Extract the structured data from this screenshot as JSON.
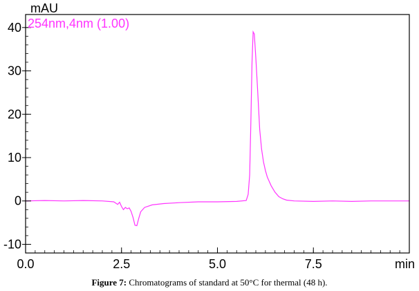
{
  "chart_data": {
    "type": "line",
    "y_unit": "mAU",
    "x_unit": "min",
    "xlim": [
      0,
      10
    ],
    "ylim": [
      -12,
      43
    ],
    "x_ticks": [
      {
        "value": 0,
        "label": "0.0"
      },
      {
        "value": 2.5,
        "label": "2.5"
      },
      {
        "value": 5,
        "label": "5.0"
      },
      {
        "value": 7.5,
        "label": "7.5"
      }
    ],
    "y_ticks": [
      {
        "value": 40,
        "label": "40"
      },
      {
        "value": 30,
        "label": "30"
      },
      {
        "value": 20,
        "label": "20"
      },
      {
        "value": 10,
        "label": "10"
      },
      {
        "value": 0,
        "label": "0"
      },
      {
        "value": -10,
        "label": "-10"
      }
    ],
    "series": [
      {
        "name": "254nm,4nm (1.00)",
        "color": "#ff33ff",
        "points": [
          [
            0.0,
            0.0
          ],
          [
            0.5,
            0.1
          ],
          [
            1.0,
            0.0
          ],
          [
            1.5,
            0.1
          ],
          [
            2.0,
            0.0
          ],
          [
            2.3,
            -0.2
          ],
          [
            2.4,
            -0.8
          ],
          [
            2.45,
            -0.3
          ],
          [
            2.5,
            -1.3
          ],
          [
            2.55,
            -2.0
          ],
          [
            2.6,
            -1.5
          ],
          [
            2.65,
            -1.8
          ],
          [
            2.7,
            -1.6
          ],
          [
            2.75,
            -2.4
          ],
          [
            2.8,
            -3.8
          ],
          [
            2.85,
            -5.6
          ],
          [
            2.9,
            -5.7
          ],
          [
            2.95,
            -4.0
          ],
          [
            3.0,
            -2.5
          ],
          [
            3.1,
            -1.5
          ],
          [
            3.3,
            -0.9
          ],
          [
            3.6,
            -0.6
          ],
          [
            4.0,
            -0.4
          ],
          [
            4.5,
            -0.2
          ],
          [
            5.0,
            -0.2
          ],
          [
            5.5,
            -0.1
          ],
          [
            5.75,
            0.1
          ],
          [
            5.8,
            1.5
          ],
          [
            5.84,
            6.0
          ],
          [
            5.87,
            18.0
          ],
          [
            5.9,
            32.0
          ],
          [
            5.93,
            39.0
          ],
          [
            5.96,
            38.5
          ],
          [
            6.0,
            33.0
          ],
          [
            6.05,
            25.0
          ],
          [
            6.1,
            16.5
          ],
          [
            6.15,
            12.0
          ],
          [
            6.2,
            9.0
          ],
          [
            6.25,
            7.0
          ],
          [
            6.3,
            5.5
          ],
          [
            6.4,
            3.5
          ],
          [
            6.5,
            2.0
          ],
          [
            6.6,
            1.0
          ],
          [
            6.7,
            0.5
          ],
          [
            6.8,
            0.2
          ],
          [
            7.0,
            0.0
          ],
          [
            7.5,
            -0.1
          ],
          [
            8.0,
            0.0
          ],
          [
            8.5,
            -0.1
          ],
          [
            9.0,
            0.0
          ],
          [
            9.5,
            0.0
          ],
          [
            10.0,
            0.0
          ]
        ]
      }
    ]
  },
  "caption": {
    "label": "Figure 7:",
    "text": "Chromatograms of standard at 50°C for thermal (48 h)."
  }
}
